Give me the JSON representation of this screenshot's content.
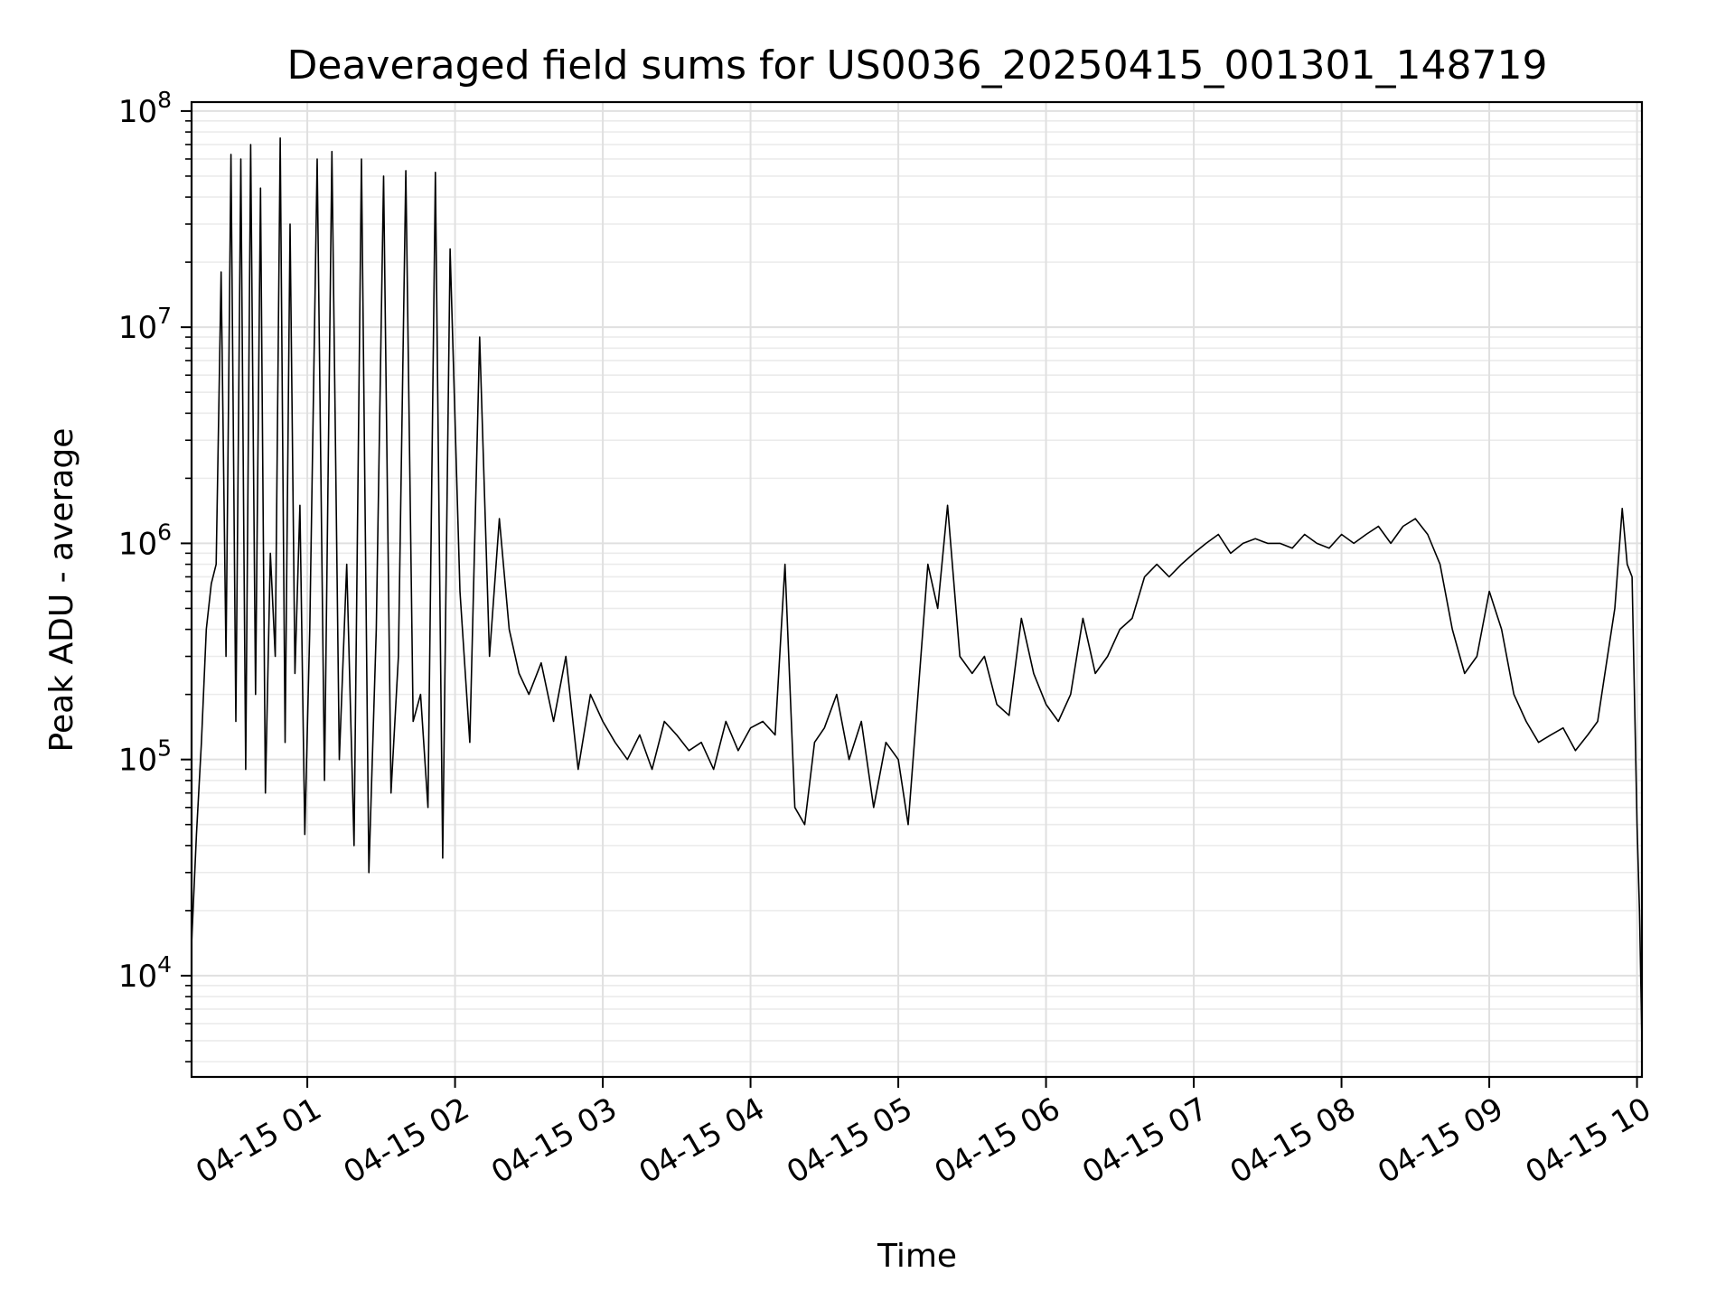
{
  "chart_data": {
    "type": "line",
    "title": "Deaveraged field sums for US0036_20250415_001301_148719",
    "xlabel": "Time",
    "ylabel": "Peak ADU - average",
    "x_scale": "time",
    "y_scale": "log",
    "xlim": [
      "2025-04-15T00:13:00",
      "2025-04-15T10:02:00"
    ],
    "ylim": [
      3400,
      110000000
    ],
    "grid": true,
    "legend": "none",
    "line_color": "#000000",
    "x_ticks": [
      {
        "t": "2025-04-15T01:00:00",
        "label": "04-15 01"
      },
      {
        "t": "2025-04-15T02:00:00",
        "label": "04-15 02"
      },
      {
        "t": "2025-04-15T03:00:00",
        "label": "04-15 03"
      },
      {
        "t": "2025-04-15T04:00:00",
        "label": "04-15 04"
      },
      {
        "t": "2025-04-15T05:00:00",
        "label": "04-15 05"
      },
      {
        "t": "2025-04-15T06:00:00",
        "label": "04-15 06"
      },
      {
        "t": "2025-04-15T07:00:00",
        "label": "04-15 07"
      },
      {
        "t": "2025-04-15T08:00:00",
        "label": "04-15 08"
      },
      {
        "t": "2025-04-15T09:00:00",
        "label": "04-15 09"
      },
      {
        "t": "2025-04-15T10:00:00",
        "label": "04-15 10"
      }
    ],
    "y_ticks": [
      {
        "value": 10000,
        "base": "10",
        "exp": "4"
      },
      {
        "value": 100000,
        "base": "10",
        "exp": "5"
      },
      {
        "value": 1000000,
        "base": "10",
        "exp": "6"
      },
      {
        "value": 10000000,
        "base": "10",
        "exp": "7"
      },
      {
        "value": 100000000,
        "base": "10",
        "exp": "8"
      }
    ],
    "series": [
      {
        "name": "",
        "x": [
          "2025-04-15T00:13:00",
          "2025-04-15T00:15:00",
          "2025-04-15T00:17:00",
          "2025-04-15T00:19:00",
          "2025-04-15T00:21:00",
          "2025-04-15T00:23:00",
          "2025-04-15T00:25:00",
          "2025-04-15T00:27:00",
          "2025-04-15T00:29:00",
          "2025-04-15T00:31:00",
          "2025-04-15T00:33:00",
          "2025-04-15T00:35:00",
          "2025-04-15T00:37:00",
          "2025-04-15T00:39:00",
          "2025-04-15T00:41:00",
          "2025-04-15T00:43:00",
          "2025-04-15T00:45:00",
          "2025-04-15T00:47:00",
          "2025-04-15T00:49:00",
          "2025-04-15T00:51:00",
          "2025-04-15T00:53:00",
          "2025-04-15T00:55:00",
          "2025-04-15T00:57:00",
          "2025-04-15T00:59:00",
          "2025-04-15T01:01:00",
          "2025-04-15T01:04:00",
          "2025-04-15T01:07:00",
          "2025-04-15T01:10:00",
          "2025-04-15T01:13:00",
          "2025-04-15T01:16:00",
          "2025-04-15T01:19:00",
          "2025-04-15T01:22:00",
          "2025-04-15T01:25:00",
          "2025-04-15T01:28:00",
          "2025-04-15T01:31:00",
          "2025-04-15T01:34:00",
          "2025-04-15T01:37:00",
          "2025-04-15T01:40:00",
          "2025-04-15T01:43:00",
          "2025-04-15T01:46:00",
          "2025-04-15T01:49:00",
          "2025-04-15T01:52:00",
          "2025-04-15T01:55:00",
          "2025-04-15T01:58:00",
          "2025-04-15T02:02:00",
          "2025-04-15T02:06:00",
          "2025-04-15T02:10:00",
          "2025-04-15T02:14:00",
          "2025-04-15T02:18:00",
          "2025-04-15T02:22:00",
          "2025-04-15T02:26:00",
          "2025-04-15T02:30:00",
          "2025-04-15T02:35:00",
          "2025-04-15T02:40:00",
          "2025-04-15T02:45:00",
          "2025-04-15T02:50:00",
          "2025-04-15T02:55:00",
          "2025-04-15T03:00:00",
          "2025-04-15T03:05:00",
          "2025-04-15T03:10:00",
          "2025-04-15T03:15:00",
          "2025-04-15T03:20:00",
          "2025-04-15T03:25:00",
          "2025-04-15T03:30:00",
          "2025-04-15T03:35:00",
          "2025-04-15T03:40:00",
          "2025-04-15T03:45:00",
          "2025-04-15T03:50:00",
          "2025-04-15T03:55:00",
          "2025-04-15T04:00:00",
          "2025-04-15T04:05:00",
          "2025-04-15T04:10:00",
          "2025-04-15T04:14:00",
          "2025-04-15T04:18:00",
          "2025-04-15T04:22:00",
          "2025-04-15T04:26:00",
          "2025-04-15T04:30:00",
          "2025-04-15T04:35:00",
          "2025-04-15T04:40:00",
          "2025-04-15T04:45:00",
          "2025-04-15T04:50:00",
          "2025-04-15T04:55:00",
          "2025-04-15T05:00:00",
          "2025-04-15T05:04:00",
          "2025-04-15T05:08:00",
          "2025-04-15T05:12:00",
          "2025-04-15T05:16:00",
          "2025-04-15T05:20:00",
          "2025-04-15T05:25:00",
          "2025-04-15T05:30:00",
          "2025-04-15T05:35:00",
          "2025-04-15T05:40:00",
          "2025-04-15T05:45:00",
          "2025-04-15T05:50:00",
          "2025-04-15T05:55:00",
          "2025-04-15T06:00:00",
          "2025-04-15T06:05:00",
          "2025-04-15T06:10:00",
          "2025-04-15T06:15:00",
          "2025-04-15T06:20:00",
          "2025-04-15T06:25:00",
          "2025-04-15T06:30:00",
          "2025-04-15T06:35:00",
          "2025-04-15T06:40:00",
          "2025-04-15T06:45:00",
          "2025-04-15T06:50:00",
          "2025-04-15T06:55:00",
          "2025-04-15T07:00:00",
          "2025-04-15T07:05:00",
          "2025-04-15T07:10:00",
          "2025-04-15T07:15:00",
          "2025-04-15T07:20:00",
          "2025-04-15T07:25:00",
          "2025-04-15T07:30:00",
          "2025-04-15T07:35:00",
          "2025-04-15T07:40:00",
          "2025-04-15T07:45:00",
          "2025-04-15T07:50:00",
          "2025-04-15T07:55:00",
          "2025-04-15T08:00:00",
          "2025-04-15T08:05:00",
          "2025-04-15T08:10:00",
          "2025-04-15T08:15:00",
          "2025-04-15T08:20:00",
          "2025-04-15T08:25:00",
          "2025-04-15T08:30:00",
          "2025-04-15T08:35:00",
          "2025-04-15T08:40:00",
          "2025-04-15T08:45:00",
          "2025-04-15T08:50:00",
          "2025-04-15T08:55:00",
          "2025-04-15T09:00:00",
          "2025-04-15T09:05:00",
          "2025-04-15T09:10:00",
          "2025-04-15T09:15:00",
          "2025-04-15T09:20:00",
          "2025-04-15T09:25:00",
          "2025-04-15T09:30:00",
          "2025-04-15T09:35:00",
          "2025-04-15T09:40:00",
          "2025-04-15T09:44:00",
          "2025-04-15T09:48:00",
          "2025-04-15T09:51:00",
          "2025-04-15T09:54:00",
          "2025-04-15T09:56:00",
          "2025-04-15T09:58:00",
          "2025-04-15T10:00:00",
          "2025-04-15T10:01:00",
          "2025-04-15T10:02:00"
        ],
        "y": [
          14000,
          45000,
          120000,
          400000,
          650000,
          800000,
          18000000,
          300000,
          63000000,
          150000,
          60000000,
          90000,
          70000000,
          200000,
          44000000,
          70000,
          900000,
          300000,
          75000000,
          120000,
          30000000,
          250000,
          1500000,
          45000,
          400000,
          60000000,
          80000,
          65000000,
          100000,
          800000,
          40000,
          60000000,
          30000,
          400000,
          50000000,
          70000,
          300000,
          53000000,
          150000,
          200000,
          60000,
          52000000,
          35000,
          23000000,
          600000,
          120000,
          9000000,
          300000,
          1300000,
          400000,
          250000,
          200000,
          280000,
          150000,
          300000,
          90000,
          200000,
          150000,
          120000,
          100000,
          130000,
          90000,
          150000,
          130000,
          110000,
          120000,
          90000,
          150000,
          110000,
          140000,
          150000,
          130000,
          800000,
          60000,
          50000,
          120000,
          140000,
          200000,
          100000,
          150000,
          60000,
          120000,
          100000,
          50000,
          200000,
          800000,
          500000,
          1500000,
          300000,
          250000,
          300000,
          180000,
          160000,
          450000,
          250000,
          180000,
          150000,
          200000,
          450000,
          250000,
          300000,
          400000,
          450000,
          700000,
          800000,
          700000,
          800000,
          900000,
          1000000,
          1100000,
          900000,
          1000000,
          1050000,
          1000000,
          1000000,
          950000,
          1100000,
          1000000,
          950000,
          1100000,
          1000000,
          1100000,
          1200000,
          1000000,
          1200000,
          1300000,
          1100000,
          800000,
          400000,
          250000,
          300000,
          600000,
          400000,
          200000,
          150000,
          120000,
          130000,
          140000,
          110000,
          130000,
          150000,
          300000,
          500000,
          1450000,
          800000,
          700000,
          50000,
          20000,
          5000
        ]
      }
    ]
  }
}
